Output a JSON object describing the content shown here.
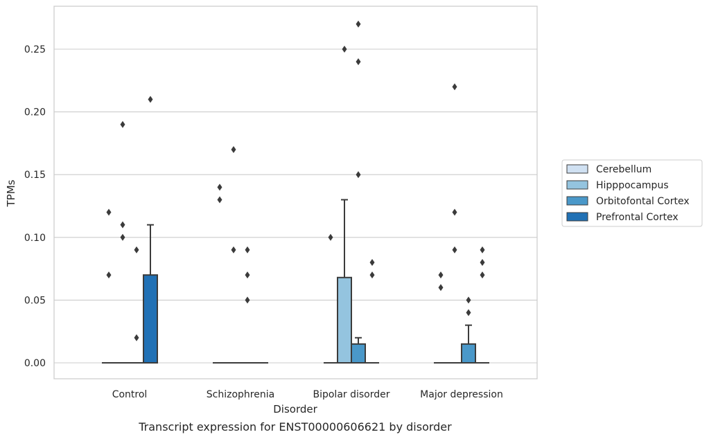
{
  "chart_data": {
    "type": "box",
    "caption": "Transcript expression for ENST00000606621 by disorder",
    "xlabel": "Disorder",
    "ylabel": "TPMs",
    "ylim": [
      -0.013,
      0.284
    ],
    "yticks": [
      0.0,
      0.05,
      0.1,
      0.15,
      0.2,
      0.25
    ],
    "ytick_labels": [
      "0.00",
      "0.05",
      "0.10",
      "0.15",
      "0.20",
      "0.25"
    ],
    "grid": "horizontal",
    "legend_position": "right",
    "categories": [
      "Control",
      "Schizophrenia",
      "Bipolar disorder",
      "Major depression"
    ],
    "series": [
      {
        "name": "Cerebellum",
        "color": "#d0e1f2",
        "boxes": [
          {
            "category": "Control",
            "q1": 0,
            "median": 0,
            "q3": 0,
            "whisker_low": 0,
            "whisker_high": 0,
            "outliers": [
              0.12,
              0.07
            ]
          },
          {
            "category": "Schizophrenia",
            "q1": 0,
            "median": 0,
            "q3": 0,
            "whisker_low": 0,
            "whisker_high": 0,
            "outliers": [
              0.14,
              0.13
            ]
          },
          {
            "category": "Bipolar disorder",
            "q1": 0,
            "median": 0,
            "q3": 0,
            "whisker_low": 0,
            "whisker_high": 0,
            "outliers": [
              0.1
            ]
          },
          {
            "category": "Major depression",
            "q1": 0,
            "median": 0,
            "q3": 0,
            "whisker_low": 0,
            "whisker_high": 0,
            "outliers": [
              0.07,
              0.06
            ]
          }
        ]
      },
      {
        "name": "Hipppocampus",
        "color": "#94c4df",
        "boxes": [
          {
            "category": "Control",
            "q1": 0,
            "median": 0,
            "q3": 0,
            "whisker_low": 0,
            "whisker_high": 0,
            "outliers": [
              0.19,
              0.11,
              0.1
            ]
          },
          {
            "category": "Schizophrenia",
            "q1": 0,
            "median": 0,
            "q3": 0,
            "whisker_low": 0,
            "whisker_high": 0,
            "outliers": [
              0.17,
              0.09
            ]
          },
          {
            "category": "Bipolar disorder",
            "q1": 0,
            "median": 0,
            "q3": 0.068,
            "whisker_low": 0,
            "whisker_high": 0.13,
            "outliers": [
              0.25
            ]
          },
          {
            "category": "Major depression",
            "q1": 0,
            "median": 0,
            "q3": 0,
            "whisker_low": 0,
            "whisker_high": 0,
            "outliers": [
              0.22,
              0.12,
              0.09
            ]
          }
        ]
      },
      {
        "name": "Orbitofontal Cortex",
        "color": "#4a98c9",
        "boxes": [
          {
            "category": "Control",
            "q1": 0,
            "median": 0,
            "q3": 0,
            "whisker_low": 0,
            "whisker_high": 0,
            "outliers": [
              0.09,
              0.02
            ]
          },
          {
            "category": "Schizophrenia",
            "q1": 0,
            "median": 0,
            "q3": 0,
            "whisker_low": 0,
            "whisker_high": 0,
            "outliers": [
              0.09,
              0.07,
              0.05
            ]
          },
          {
            "category": "Bipolar disorder",
            "q1": 0,
            "median": 0,
            "q3": 0.015,
            "whisker_low": 0,
            "whisker_high": 0.02,
            "outliers": [
              0.27,
              0.24,
              0.15
            ]
          },
          {
            "category": "Major depression",
            "q1": 0,
            "median": 0,
            "q3": 0.015,
            "whisker_low": 0,
            "whisker_high": 0.03,
            "outliers": [
              0.05,
              0.04
            ]
          }
        ]
      },
      {
        "name": "Prefrontal Cortex",
        "color": "#2171b5",
        "boxes": [
          {
            "category": "Control",
            "q1": 0,
            "median": 0,
            "q3": 0.07,
            "whisker_low": 0,
            "whisker_high": 0.11,
            "outliers": [
              0.21
            ]
          },
          {
            "category": "Schizophrenia",
            "q1": 0,
            "median": 0,
            "q3": 0,
            "whisker_low": 0,
            "whisker_high": 0,
            "outliers": []
          },
          {
            "category": "Bipolar disorder",
            "q1": 0,
            "median": 0,
            "q3": 0,
            "whisker_low": 0,
            "whisker_high": 0,
            "outliers": [
              0.08,
              0.07
            ]
          },
          {
            "category": "Major depression",
            "q1": 0,
            "median": 0,
            "q3": 0,
            "whisker_low": 0,
            "whisker_high": 0,
            "outliers": [
              0.09,
              0.08,
              0.07
            ]
          }
        ]
      }
    ]
  }
}
